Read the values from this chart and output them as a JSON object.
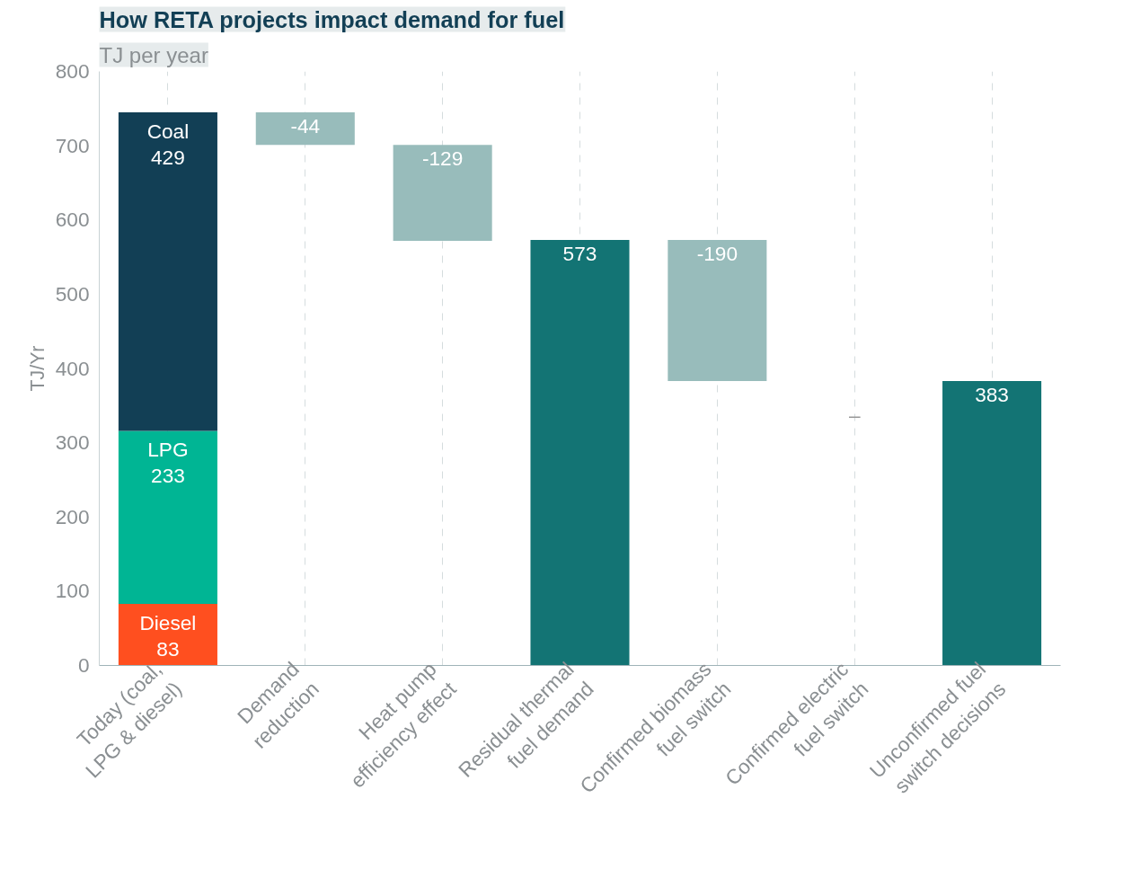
{
  "chart_data": {
    "type": "bar",
    "title": "How RETA projects impact demand for fuel",
    "subtitle": "TJ per year",
    "ylabel": "TJ/Yr",
    "categories": [
      "Today (coal,\nLPG & diesel)",
      "Demand\nreduction",
      "Heat pump\nefficiency effect",
      "Residual thermal\nfuel demand",
      "Confirmed biomass\nfuel switch",
      "Confirmed electric\nfuel switch",
      "Unconfirmed fuel\nswitch decisions"
    ],
    "stacked": true,
    "series": [
      {
        "name": "Diesel",
        "color": "#ff4f1f",
        "values": [
          83,
          null,
          null,
          null,
          null,
          null,
          null
        ],
        "value_labels": [
          "83",
          null,
          null,
          null,
          null,
          null,
          null
        ]
      },
      {
        "name": "LPG",
        "color": "#00b594",
        "values": [
          233,
          null,
          null,
          null,
          null,
          null,
          null
        ],
        "value_labels": [
          "233",
          null,
          null,
          null,
          null,
          null,
          null
        ]
      },
      {
        "name": "Coal",
        "color": "#123f55",
        "values": [
          429,
          null,
          null,
          null,
          null,
          null,
          null
        ],
        "value_labels": [
          "429",
          null,
          null,
          null,
          null,
          null,
          null
        ]
      },
      {
        "color": "#98bcbb",
        "base": [
          null,
          745,
          701,
          null,
          573,
          null,
          null
        ],
        "values": [
          null,
          -44,
          -129,
          null,
          -190,
          null,
          null
        ],
        "value_labels": [
          null,
          "-44",
          "-129",
          null,
          "-190",
          null,
          null
        ]
      },
      {
        "color": "#137474",
        "values": [
          null,
          null,
          null,
          573,
          null,
          null,
          383
        ],
        "value_labels": [
          null,
          null,
          null,
          "573",
          null,
          null,
          "383"
        ]
      }
    ],
    "ylim": [
      0,
      800
    ],
    "yticks": [
      0,
      100,
      200,
      300,
      400,
      500,
      600,
      700,
      800
    ],
    "grid": "x",
    "annotations": [
      "–"
    ]
  }
}
